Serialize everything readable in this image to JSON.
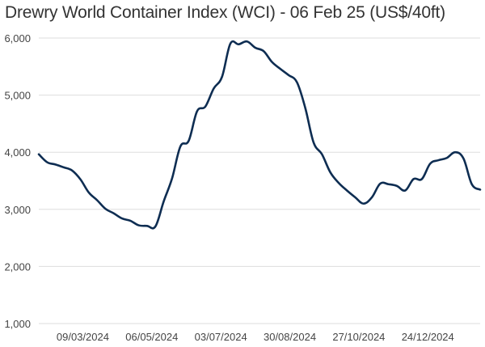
{
  "chart_data": {
    "type": "line",
    "title": "Drewry World Container Index (WCI) - 06 Feb 25 (US$/40ft)",
    "xlabel": "",
    "ylabel": "",
    "ylim": [
      1000,
      6000
    ],
    "y_ticks": [
      1000,
      2000,
      3000,
      4000,
      5000,
      6000
    ],
    "y_tick_labels": [
      "1,000",
      "2,000",
      "3,000",
      "4,000",
      "5,000",
      "6,000"
    ],
    "x_ticks": [
      "2024-03-09",
      "2024-05-06",
      "2024-07-03",
      "2024-08-30",
      "2024-10-27",
      "2024-12-24"
    ],
    "x_tick_labels": [
      "09/03/2024",
      "06/05/2024",
      "03/07/2024",
      "30/08/2024",
      "27/10/2024",
      "24/12/2024"
    ],
    "x_range": [
      "2024-02-01",
      "2025-02-06"
    ],
    "grid": "horizontal",
    "colors": {
      "line": "#0e2d52",
      "grid": "#dddddd",
      "text": "#444444",
      "title": "#333333"
    },
    "series": [
      {
        "x": [
          "2024-02-01",
          "2024-02-08",
          "2024-02-15",
          "2024-02-22",
          "2024-02-29",
          "2024-03-07",
          "2024-03-14",
          "2024-03-21",
          "2024-03-28",
          "2024-04-04",
          "2024-04-11",
          "2024-04-18",
          "2024-04-25",
          "2024-05-02",
          "2024-05-09",
          "2024-05-16",
          "2024-05-23",
          "2024-05-30",
          "2024-06-06",
          "2024-06-13",
          "2024-06-20",
          "2024-06-27",
          "2024-07-04",
          "2024-07-11",
          "2024-07-18",
          "2024-07-25",
          "2024-08-01",
          "2024-08-08",
          "2024-08-15",
          "2024-08-22",
          "2024-08-29",
          "2024-09-05",
          "2024-09-12",
          "2024-09-19",
          "2024-09-26",
          "2024-10-03",
          "2024-10-10",
          "2024-10-17",
          "2024-10-24",
          "2024-10-31",
          "2024-11-07",
          "2024-11-14",
          "2024-11-21",
          "2024-11-28",
          "2024-12-05",
          "2024-12-12",
          "2024-12-19",
          "2024-12-26",
          "2025-01-02",
          "2025-01-09",
          "2025-01-16",
          "2025-01-23",
          "2025-01-30",
          "2025-02-06"
        ],
        "values": [
          3964,
          3825,
          3785,
          3735,
          3680,
          3525,
          3295,
          3160,
          3010,
          2930,
          2840,
          2800,
          2720,
          2710,
          2700,
          3140,
          3540,
          4100,
          4200,
          4715,
          4800,
          5115,
          5320,
          5900,
          5890,
          5940,
          5830,
          5770,
          5580,
          5460,
          5350,
          5225,
          4775,
          4170,
          3965,
          3650,
          3465,
          3330,
          3210,
          3100,
          3210,
          3450,
          3440,
          3410,
          3330,
          3530,
          3530,
          3800,
          3860,
          3900,
          4000,
          3890,
          3440,
          3345
        ]
      }
    ]
  }
}
